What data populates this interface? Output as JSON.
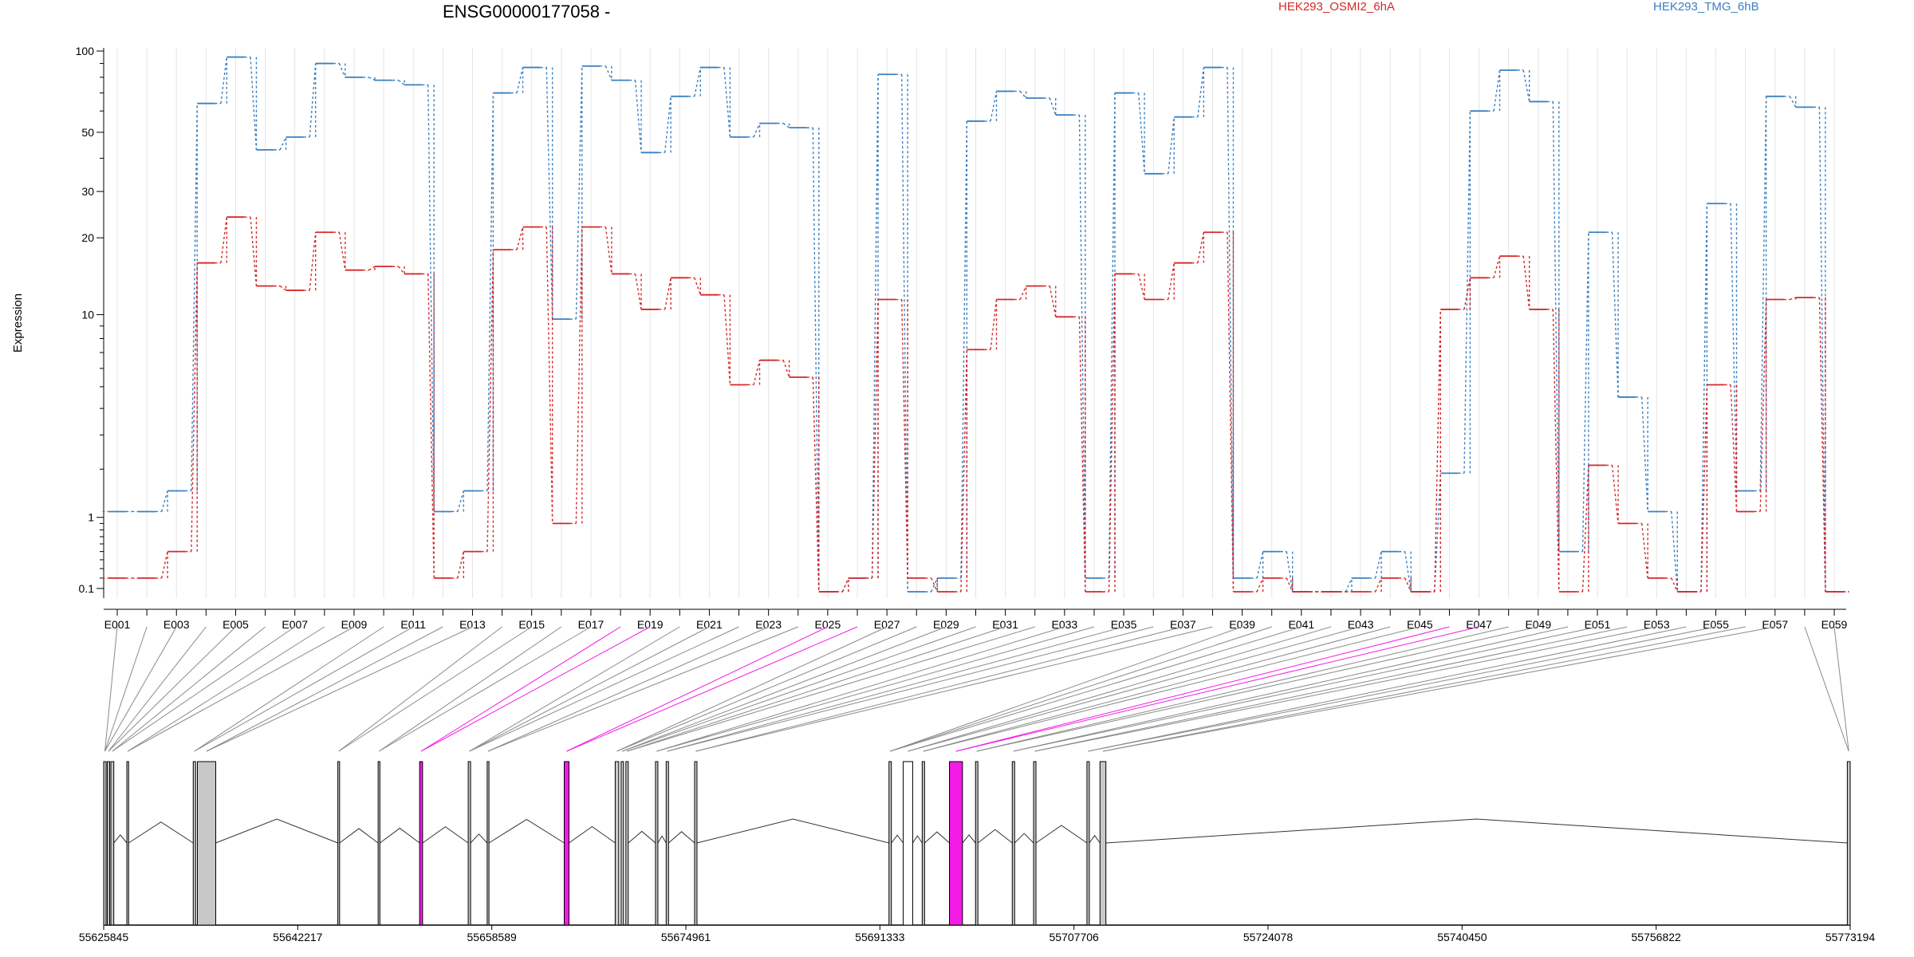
{
  "colors": {
    "series_a": "#d62728",
    "series_b": "#3a7fc1",
    "highlight": "#f21ce4",
    "exon_grey": "#c8c8c8",
    "link_grey": "#8a8a8a",
    "grid": "#e4e4e4"
  },
  "chart_data": {
    "type": "line",
    "title": "ENSG00000177058 -",
    "xlabel": "",
    "ylabel": "Expression",
    "y_scale": "log(1+x)",
    "ylim": [
      0.07,
      100
    ],
    "y_ticks": [
      0.1,
      1,
      10,
      20,
      30,
      50,
      100
    ],
    "y_tick_labels": [
      "0.1",
      "1",
      "10",
      "20",
      "30",
      "50",
      "100"
    ],
    "legend_placement": "top",
    "grid": true,
    "categories": [
      "E001",
      "E002",
      "E003",
      "E004",
      "E005",
      "E006",
      "E007",
      "E008",
      "E009",
      "E010",
      "E011",
      "E012",
      "E013",
      "E014",
      "E015",
      "E016",
      "E017",
      "E018",
      "E019",
      "E020",
      "E021",
      "E022",
      "E023",
      "E024",
      "E025",
      "E026",
      "E027",
      "E028",
      "E029",
      "E030",
      "E031",
      "E032",
      "E033",
      "E034",
      "E035",
      "E036",
      "E037",
      "E038",
      "E039",
      "E040",
      "E041",
      "E042",
      "E043",
      "E044",
      "E045",
      "E046",
      "E047",
      "E048",
      "E049",
      "E050",
      "E051",
      "E052",
      "E053",
      "E054",
      "E055",
      "E056",
      "E057",
      "E058",
      "E059"
    ],
    "x_tick_labels": [
      "E001",
      "E003",
      "E005",
      "E007",
      "E009",
      "E011",
      "E013",
      "E015",
      "E017",
      "E019",
      "E021",
      "E023",
      "E025",
      "E027",
      "E029",
      "E031",
      "E033",
      "E035",
      "E037",
      "E039",
      "E041",
      "E043",
      "E045",
      "E047",
      "E049",
      "E051",
      "E053",
      "E055",
      "E057",
      "E059"
    ],
    "series": [
      {
        "name": "HEK293_OSMI2_6hA",
        "values": [
          0.2,
          0.2,
          0.5,
          16,
          24,
          13,
          12.5,
          21,
          15,
          15.5,
          14.5,
          0.2,
          0.5,
          18,
          22,
          0.9,
          22,
          14.5,
          10.5,
          14,
          12,
          5.1,
          6.5,
          5.5,
          0.07,
          0.2,
          11.5,
          0.2,
          0.07,
          7.2,
          11.5,
          13,
          9.8,
          0.07,
          14.5,
          11.5,
          16,
          21,
          0.07,
          0.2,
          0.07,
          0.07,
          0.07,
          0.2,
          0.07,
          10.5,
          14,
          17,
          10.5,
          0.07,
          2.1,
          0.9,
          0.2,
          0.07,
          5.1,
          1.1,
          11.5,
          11.7,
          0.07
        ]
      },
      {
        "name": "HEK293_TMG_6hB",
        "values": [
          1.1,
          1.1,
          1.5,
          64,
          95,
          43,
          48,
          90,
          80,
          78,
          75,
          1.1,
          1.5,
          70,
          87,
          9.6,
          88,
          78,
          42,
          68,
          87,
          48,
          54,
          52,
          0.07,
          0.2,
          82,
          0.07,
          0.2,
          55,
          71,
          67,
          58,
          0.2,
          70,
          35,
          57,
          87,
          0.2,
          0.5,
          0.07,
          0.07,
          0.2,
          0.5,
          0.07,
          1.9,
          60,
          85,
          65,
          0.5,
          21,
          4.5,
          1.1,
          0.07,
          27,
          1.5,
          68,
          62,
          0.07
        ]
      }
    ]
  },
  "gene_model": {
    "start_coord": 55625845,
    "end_coord": 55773194,
    "tick_values": [
      55625845,
      55642217,
      55658589,
      55674961,
      55691333,
      55707706,
      55724078,
      55740450,
      55756822,
      55773194
    ],
    "tick_labels": [
      "55625845",
      "55642217",
      "55658589",
      "55674961",
      "55691333",
      "55707706",
      "55724078",
      "55740450",
      "55756822",
      "55773194"
    ],
    "exons": [
      {
        "s": 55625845,
        "e": 55626050,
        "fill": "#c8c8c8",
        "label_link": 0
      },
      {
        "s": 55626150,
        "e": 55626350,
        "fill": "#c8c8c8",
        "label_link": 1
      },
      {
        "s": 55626450,
        "e": 55626700,
        "fill": "#c8c8c8",
        "label_link": 2
      },
      {
        "s": 55627800,
        "e": 55627950,
        "fill": "#c8c8c8",
        "label_link": 3
      },
      {
        "s": 55633400,
        "e": 55633600,
        "fill": "#c8c8c8",
        "label_link": 4
      },
      {
        "s": 55633750,
        "e": 55635300,
        "fill": "#c8c8c8",
        "label_link": 5
      },
      {
        "s": 55645600,
        "e": 55645750,
        "fill": "#c8c8c8",
        "label_link": 6
      },
      {
        "s": 55649000,
        "e": 55649150,
        "fill": "#c8c8c8",
        "label_link": 7
      },
      {
        "s": 55652500,
        "e": 55652750,
        "fill": "#f21ce4",
        "label_link": 8
      },
      {
        "s": 55656600,
        "e": 55656800,
        "fill": "#c8c8c8",
        "label_link": 9
      },
      {
        "s": 55658200,
        "e": 55658350,
        "fill": "#c8c8c8",
        "label_link": 10
      },
      {
        "s": 55664700,
        "e": 55665100,
        "fill": "#f21ce4",
        "label_link": 11
      },
      {
        "s": 55669000,
        "e": 55669300,
        "fill": "#c8c8c8",
        "label_link": 12
      },
      {
        "s": 55669500,
        "e": 55669700,
        "fill": "#c8c8c8",
        "label_link": 13
      },
      {
        "s": 55669900,
        "e": 55670100,
        "fill": "#c8c8c8",
        "label_link": 14
      },
      {
        "s": 55672400,
        "e": 55672600,
        "fill": "#c8c8c8",
        "label_link": 15
      },
      {
        "s": 55673300,
        "e": 55673500,
        "fill": "#c8c8c8",
        "label_link": 16
      },
      {
        "s": 55675700,
        "e": 55675900,
        "fill": "#c8c8c8",
        "label_link": 17
      },
      {
        "s": 55692100,
        "e": 55692300,
        "fill": "#c8c8c8",
        "label_link": 18
      },
      {
        "s": 55693300,
        "e": 55694100,
        "fill": "#ffffff",
        "label_link": 19
      },
      {
        "s": 55694900,
        "e": 55695100,
        "fill": "#c8c8c8",
        "label_link": 20
      },
      {
        "s": 55697200,
        "e": 55698300,
        "fill": "#f21ce4",
        "label_link": 21
      },
      {
        "s": 55699400,
        "e": 55699600,
        "fill": "#c8c8c8",
        "label_link": 22
      },
      {
        "s": 55702500,
        "e": 55702700,
        "fill": "#c8c8c8",
        "label_link": 23
      },
      {
        "s": 55704300,
        "e": 55704500,
        "fill": "#c8c8c8",
        "label_link": 24
      },
      {
        "s": 55708800,
        "e": 55709000,
        "fill": "#c8c8c8",
        "label_link": 25
      },
      {
        "s": 55709900,
        "e": 55710400,
        "fill": "#c8c8c8",
        "label_link": 26
      },
      {
        "s": 55772950,
        "e": 55773194,
        "fill": "#c8c8c8",
        "label_link": 27
      }
    ]
  }
}
